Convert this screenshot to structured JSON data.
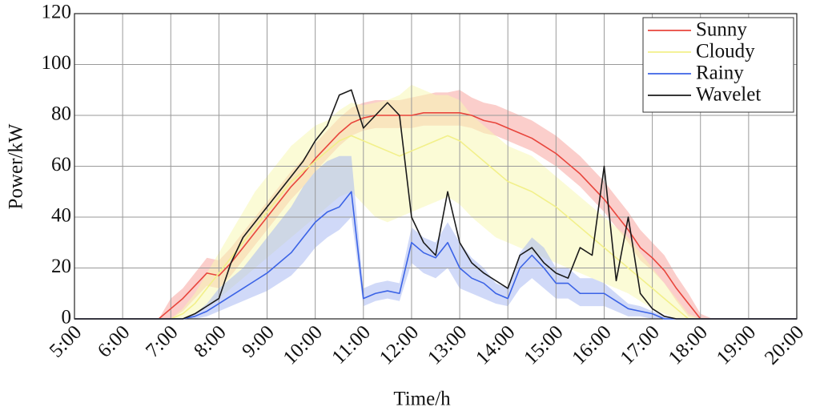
{
  "chart_data": {
    "type": "line",
    "xlabel": "Time/h",
    "ylabel": "Power/kW",
    "xlim": [
      5,
      20
    ],
    "ylim": [
      0,
      120
    ],
    "xticks": [
      {
        "value": 5,
        "label": "5:00"
      },
      {
        "value": 6,
        "label": "6:00"
      },
      {
        "value": 7,
        "label": "7:00"
      },
      {
        "value": 8,
        "label": "8:00"
      },
      {
        "value": 9,
        "label": "9:00"
      },
      {
        "value": 10,
        "label": "10:00"
      },
      {
        "value": 11,
        "label": "11:00"
      },
      {
        "value": 12,
        "label": "12:00"
      },
      {
        "value": 13,
        "label": "13:00"
      },
      {
        "value": 14,
        "label": "14:00"
      },
      {
        "value": 15,
        "label": "15:00"
      },
      {
        "value": 16,
        "label": "16:00"
      },
      {
        "value": 17,
        "label": "17:00"
      },
      {
        "value": 18,
        "label": "18:00"
      },
      {
        "value": 19,
        "label": "19:00"
      },
      {
        "value": 20,
        "label": "20:00"
      }
    ],
    "yticks": [
      0,
      20,
      40,
      60,
      80,
      100,
      120
    ],
    "grid": true,
    "legend": "upper right",
    "x": [
      5,
      6.5,
      6.75,
      7,
      7.25,
      7.5,
      7.75,
      8,
      8.25,
      8.5,
      8.75,
      9,
      9.25,
      9.5,
      9.75,
      10,
      10.25,
      10.5,
      10.75,
      11,
      11.25,
      11.5,
      11.75,
      12,
      12.25,
      12.5,
      12.75,
      13,
      13.25,
      13.5,
      13.75,
      14,
      14.25,
      14.5,
      14.75,
      15,
      15.25,
      15.5,
      15.75,
      16,
      16.25,
      16.5,
      16.75,
      17,
      17.25,
      17.5,
      17.75,
      18,
      18.25,
      18.5,
      20
    ],
    "series": [
      {
        "name": "Sunny",
        "color": "#e8453c",
        "band_color": "#f7a6a0",
        "values": [
          0,
          0,
          0,
          4,
          8,
          13,
          18,
          17,
          22,
          28,
          34,
          40,
          46,
          52,
          57,
          63,
          68,
          73,
          77,
          79,
          80,
          80,
          80,
          80,
          81,
          81,
          81,
          81,
          80,
          78,
          77,
          75,
          73,
          71,
          68,
          65,
          61,
          57,
          52,
          47,
          41,
          35,
          28,
          24,
          19,
          12,
          6,
          0,
          0,
          0,
          0
        ],
        "lower": [
          0,
          0,
          0,
          0,
          3,
          8,
          13,
          12,
          17,
          23,
          29,
          35,
          41,
          47,
          52,
          58,
          63,
          68,
          72,
          74,
          75,
          75,
          75,
          75,
          76,
          76,
          76,
          76,
          75,
          73,
          72,
          70,
          68,
          66,
          63,
          60,
          56,
          52,
          47,
          42,
          36,
          30,
          23,
          19,
          14,
          7,
          1,
          0,
          0,
          0,
          0
        ],
        "upper": [
          0,
          0,
          0,
          8,
          12,
          18,
          24,
          23,
          28,
          34,
          40,
          46,
          52,
          58,
          63,
          69,
          74,
          79,
          83,
          85,
          86,
          86,
          86,
          87,
          88,
          89,
          89,
          90,
          87,
          85,
          84,
          82,
          80,
          78,
          75,
          72,
          68,
          64,
          59,
          54,
          48,
          42,
          35,
          30,
          25,
          17,
          10,
          2,
          0,
          0,
          0
        ]
      },
      {
        "name": "Cloudy",
        "color": "#f2f08a",
        "band_color": "#f8f7b4",
        "values": [
          0,
          0,
          0,
          0,
          2,
          6,
          12,
          18,
          24,
          30,
          36,
          42,
          48,
          54,
          58,
          62,
          66,
          70,
          72,
          70,
          68,
          66,
          64,
          66,
          68,
          70,
          72,
          70,
          66,
          62,
          58,
          54,
          52,
          50,
          47,
          44,
          40,
          36,
          32,
          28,
          24,
          20,
          16,
          12,
          8,
          4,
          0,
          0,
          0,
          0,
          0
        ],
        "lower": [
          0,
          0,
          0,
          0,
          0,
          2,
          5,
          8,
          12,
          16,
          20,
          24,
          28,
          32,
          36,
          40,
          44,
          48,
          50,
          45,
          40,
          38,
          40,
          42,
          44,
          46,
          48,
          45,
          40,
          36,
          32,
          30,
          28,
          26,
          24,
          22,
          20,
          18,
          16,
          14,
          12,
          10,
          7,
          4,
          2,
          0,
          0,
          0,
          0,
          0,
          0
        ],
        "upper": [
          0,
          0,
          0,
          0,
          4,
          10,
          18,
          26,
          34,
          42,
          50,
          56,
          62,
          68,
          72,
          76,
          78,
          82,
          85,
          84,
          85,
          86,
          88,
          92,
          90,
          88,
          88,
          86,
          80,
          76,
          72,
          68,
          66,
          64,
          60,
          56,
          52,
          48,
          44,
          40,
          36,
          32,
          26,
          20,
          14,
          8,
          2,
          0,
          0,
          0,
          0
        ]
      },
      {
        "name": "Rainy",
        "color": "#3b63e6",
        "band_color": "#a9b9f3",
        "values": [
          0,
          0,
          0,
          0,
          0,
          1,
          3,
          6,
          9,
          12,
          15,
          18,
          22,
          26,
          32,
          38,
          42,
          44,
          50,
          8,
          10,
          11,
          10,
          30,
          26,
          24,
          30,
          20,
          16,
          14,
          10,
          8,
          20,
          25,
          20,
          14,
          14,
          10,
          10,
          10,
          7,
          4,
          3,
          2,
          0,
          0,
          0,
          0,
          0,
          0,
          0
        ],
        "lower": [
          0,
          0,
          0,
          0,
          0,
          0,
          1,
          3,
          5,
          7,
          9,
          11,
          14,
          17,
          22,
          28,
          32,
          35,
          40,
          5,
          7,
          8,
          7,
          22,
          18,
          16,
          20,
          12,
          10,
          8,
          6,
          5,
          12,
          16,
          12,
          8,
          8,
          5,
          5,
          5,
          3,
          1,
          1,
          0,
          0,
          0,
          0,
          0,
          0,
          0,
          0
        ],
        "upper": [
          0,
          0,
          0,
          0,
          0,
          2,
          6,
          12,
          16,
          20,
          26,
          32,
          38,
          44,
          52,
          58,
          62,
          64,
          64,
          12,
          14,
          15,
          14,
          36,
          32,
          30,
          38,
          30,
          24,
          20,
          14,
          12,
          26,
          32,
          28,
          20,
          20,
          16,
          16,
          14,
          10,
          6,
          5,
          3,
          1,
          0,
          0,
          0,
          0,
          0,
          0
        ]
      },
      {
        "name": "Wavelet",
        "color": "#1a1a1a",
        "values": [
          0,
          0,
          0,
          0,
          0,
          2,
          5,
          8,
          22,
          32,
          38,
          44,
          50,
          56,
          62,
          70,
          76,
          88,
          90,
          75,
          80,
          85,
          80,
          40,
          30,
          25,
          50,
          30,
          22,
          18,
          15,
          12,
          25,
          28,
          22,
          18,
          16,
          28,
          25,
          60,
          15,
          40,
          10,
          4,
          1,
          0,
          0,
          0,
          0,
          0,
          0
        ]
      }
    ]
  }
}
